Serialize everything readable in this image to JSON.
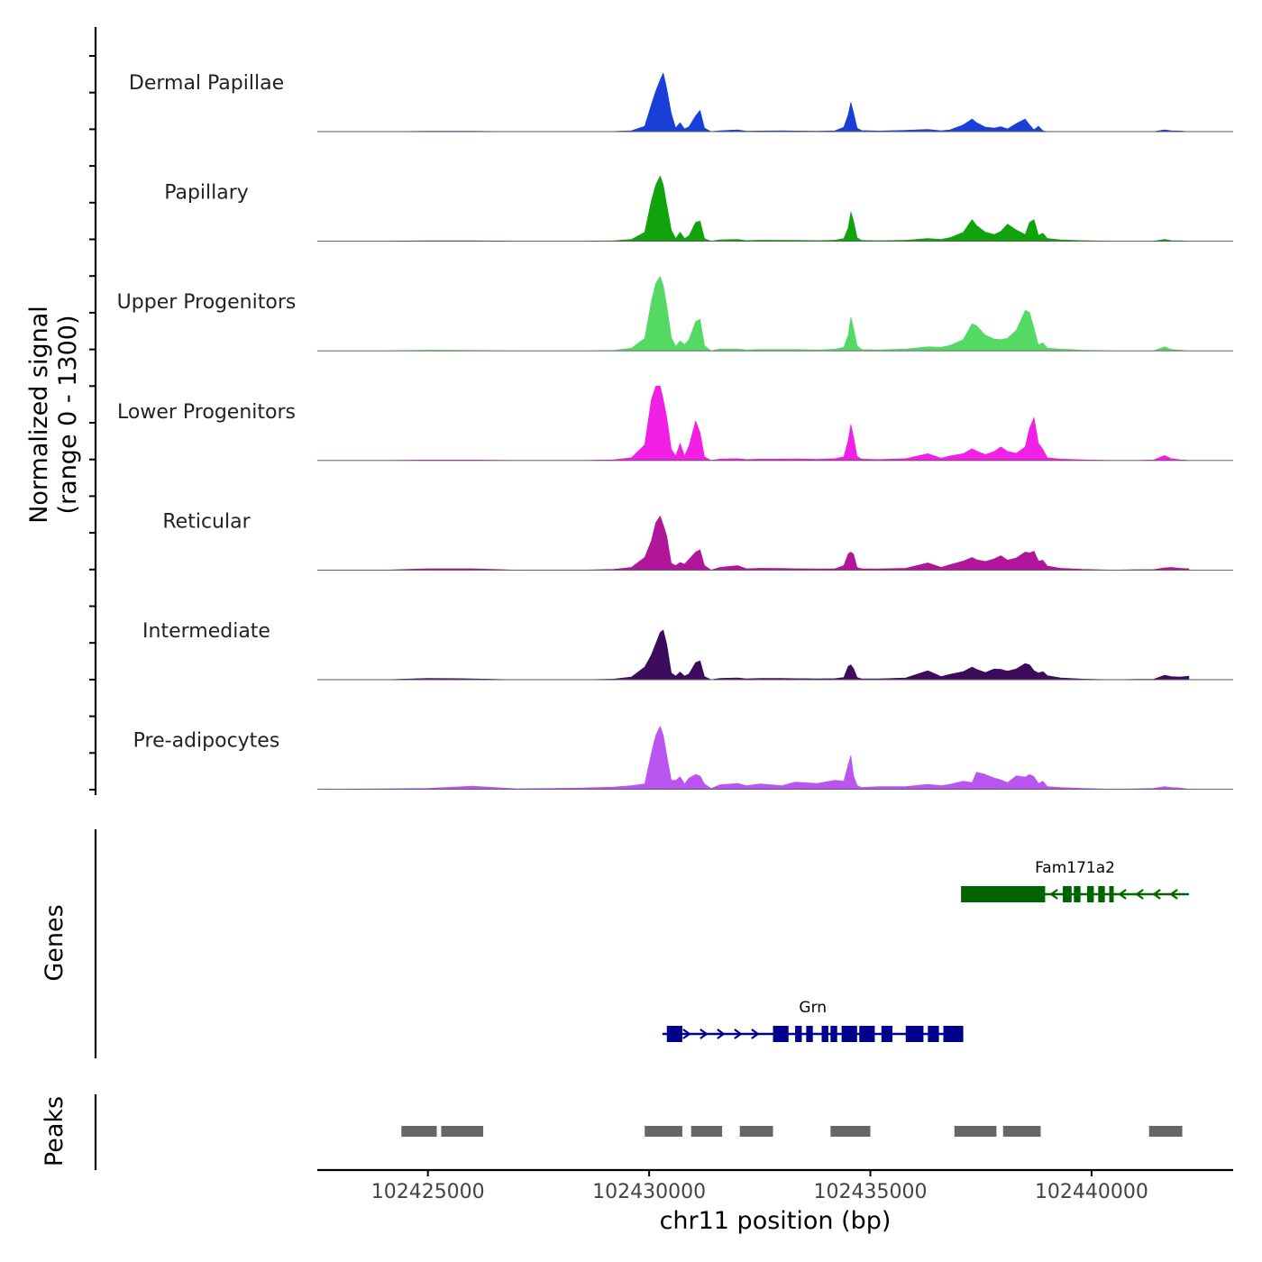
{
  "chart_data": {
    "type": "area",
    "chromosome": "chr11",
    "xlabel": "chr11 position (bp)",
    "xlim": [
      102422500,
      102443200
    ],
    "xticks": [
      102425000,
      102430000,
      102435000,
      102440000
    ],
    "xtick_labels": [
      "102425000",
      "102430000",
      "102435000",
      "102440000"
    ],
    "coverage_panel": {
      "ylabel_line1": "Normalized signal",
      "ylabel_line2": "(range 0 - 1300)",
      "ylim": [
        0,
        1300
      ],
      "positions": [
        102422500,
        102424000,
        102425000,
        102426000,
        102427000,
        102428500,
        102429200,
        102429600,
        102429900,
        102430050,
        102430150,
        102430250,
        102430320,
        102430400,
        102430500,
        102430600,
        102430700,
        102430800,
        102430900,
        102431050,
        102431150,
        102431250,
        102431400,
        102431600,
        102432000,
        102432200,
        102432500,
        102433000,
        102433300,
        102433800,
        102434200,
        102434400,
        102434500,
        102434560,
        102434620,
        102434700,
        102434800,
        102435200,
        102435800,
        102436300,
        102436600,
        102436800,
        102437100,
        102437300,
        102437400,
        102437600,
        102437800,
        102437950,
        102438100,
        102438300,
        102438500,
        102438600,
        102438700,
        102438800,
        102438900,
        102439000,
        102439300,
        102439800,
        102440500,
        102441000,
        102441400,
        102441650,
        102441800,
        102442000,
        102442200
      ],
      "tracks": [
        {
          "name": "Dermal Papillae",
          "color": "#1a3fd9",
          "values": [
            0,
            0,
            10,
            10,
            0,
            0,
            5,
            20,
            120,
            600,
            900,
            1150,
            1300,
            950,
            400,
            80,
            200,
            60,
            110,
            350,
            470,
            80,
            0,
            20,
            40,
            10,
            15,
            20,
            15,
            10,
            20,
            100,
            380,
            650,
            420,
            80,
            25,
            15,
            30,
            50,
            20,
            40,
            150,
            280,
            200,
            100,
            80,
            110,
            60,
            180,
            280,
            150,
            40,
            120,
            20,
            0,
            0,
            0,
            0,
            0,
            0,
            40,
            20,
            15,
            0
          ]
        },
        {
          "name": "Papillary",
          "color": "#11a30b",
          "values": [
            0,
            0,
            10,
            10,
            0,
            0,
            10,
            40,
            200,
            900,
            1250,
            1450,
            1250,
            800,
            250,
            60,
            200,
            60,
            120,
            420,
            450,
            60,
            0,
            30,
            40,
            15,
            25,
            20,
            20,
            15,
            25,
            60,
            300,
            650,
            450,
            80,
            20,
            10,
            25,
            60,
            40,
            80,
            200,
            480,
            350,
            200,
            150,
            220,
            380,
            250,
            150,
            420,
            480,
            130,
            180,
            60,
            30,
            15,
            0,
            0,
            0,
            40,
            15,
            10,
            0
          ]
        },
        {
          "name": "Upper Progenitors",
          "color": "#55d965",
          "values": [
            0,
            0,
            15,
            10,
            0,
            0,
            10,
            60,
            280,
            1100,
            1500,
            1650,
            1450,
            1000,
            300,
            100,
            220,
            140,
            250,
            650,
            700,
            120,
            0,
            40,
            40,
            20,
            30,
            30,
            30,
            20,
            35,
            80,
            350,
            750,
            500,
            120,
            30,
            20,
            40,
            90,
            80,
            120,
            250,
            600,
            560,
            350,
            260,
            250,
            280,
            460,
            900,
            850,
            500,
            130,
            180,
            60,
            40,
            15,
            0,
            0,
            0,
            90,
            30,
            15,
            0
          ]
        },
        {
          "name": "Lower Progenitors",
          "color": "#f21fe6",
          "values": [
            0,
            0,
            10,
            10,
            0,
            0,
            15,
            60,
            350,
            1350,
            1650,
            1650,
            1350,
            950,
            250,
            100,
            380,
            100,
            320,
            880,
            620,
            80,
            0,
            30,
            40,
            20,
            30,
            30,
            35,
            25,
            40,
            80,
            450,
            800,
            520,
            90,
            30,
            20,
            40,
            150,
            50,
            100,
            150,
            260,
            210,
            130,
            200,
            300,
            200,
            160,
            300,
            720,
            950,
            380,
            250,
            60,
            30,
            15,
            0,
            0,
            10,
            110,
            40,
            15,
            0
          ]
        },
        {
          "name": "Reticular",
          "color": "#b0159a",
          "values": [
            0,
            0,
            30,
            30,
            0,
            0,
            15,
            60,
            280,
            650,
            1050,
            1200,
            1000,
            750,
            150,
            100,
            170,
            130,
            240,
            400,
            450,
            100,
            0,
            60,
            100,
            30,
            40,
            35,
            30,
            25,
            30,
            100,
            360,
            400,
            350,
            60,
            30,
            25,
            40,
            160,
            60,
            120,
            200,
            280,
            230,
            190,
            250,
            320,
            220,
            270,
            400,
            380,
            420,
            200,
            220,
            90,
            40,
            15,
            0,
            10,
            10,
            50,
            60,
            40,
            30
          ]
        },
        {
          "name": "Intermediate",
          "color": "#3d0b5c",
          "values": [
            0,
            0,
            30,
            20,
            0,
            0,
            15,
            60,
            280,
            550,
            800,
            1050,
            1100,
            780,
            150,
            80,
            170,
            80,
            130,
            380,
            420,
            70,
            0,
            30,
            40,
            20,
            30,
            30,
            25,
            20,
            25,
            50,
            300,
            330,
            250,
            50,
            20,
            20,
            40,
            200,
            70,
            120,
            180,
            280,
            230,
            160,
            240,
            230,
            190,
            240,
            360,
            330,
            200,
            150,
            180,
            90,
            40,
            15,
            0,
            10,
            10,
            100,
            70,
            60,
            80
          ]
        },
        {
          "name": "Pre-adipocytes",
          "color": "#bb55f2",
          "values": [
            0,
            10,
            20,
            70,
            10,
            30,
            50,
            80,
            120,
            800,
            1200,
            1400,
            1200,
            750,
            200,
            200,
            280,
            120,
            250,
            330,
            300,
            120,
            20,
            100,
            130,
            80,
            120,
            80,
            160,
            130,
            200,
            180,
            550,
            750,
            300,
            90,
            40,
            60,
            60,
            110,
            80,
            110,
            180,
            150,
            380,
            330,
            250,
            210,
            150,
            300,
            270,
            330,
            280,
            130,
            180,
            60,
            40,
            20,
            0,
            10,
            20,
            60,
            40,
            30,
            0
          ]
        }
      ]
    },
    "genes_panel": {
      "ylabel": "Genes",
      "genes": [
        {
          "name": "Fam171a2",
          "color": "#006400",
          "strand": "-",
          "start": 102437050,
          "end": 102442200,
          "thick_blocks": [
            [
              102437050,
              102438950
            ]
          ],
          "exons": [
            [
              102439350,
              102439550
            ],
            [
              102439600,
              102439750
            ],
            [
              102439900,
              102440050
            ],
            [
              102440150,
              102440300
            ],
            [
              102440400,
              102440500
            ]
          ]
        },
        {
          "name": "Grn",
          "color": "#00008b",
          "strand": "+",
          "start": 102430300,
          "end": 102437100,
          "thick_blocks": [
            [
              102430400,
              102430750
            ]
          ],
          "exons": [
            [
              102432800,
              102433150
            ],
            [
              102433300,
              102433450
            ],
            [
              102433550,
              102433700
            ],
            [
              102433900,
              102434050
            ],
            [
              102434100,
              102434250
            ],
            [
              102434350,
              102434700
            ],
            [
              102434750,
              102435100
            ],
            [
              102435250,
              102435500
            ],
            [
              102435800,
              102436200
            ],
            [
              102436300,
              102436550
            ],
            [
              102436650,
              102437100
            ]
          ]
        }
      ]
    },
    "peaks_panel": {
      "ylabel": "Peaks",
      "color": "#666666",
      "peaks": [
        [
          102424400,
          102425200
        ],
        [
          102425300,
          102426250
        ],
        [
          102429900,
          102430750
        ],
        [
          102430950,
          102431650
        ],
        [
          102432050,
          102432800
        ],
        [
          102434100,
          102435000
        ],
        [
          102436900,
          102437850
        ],
        [
          102438000,
          102438850
        ],
        [
          102441300,
          102442050
        ]
      ]
    }
  }
}
